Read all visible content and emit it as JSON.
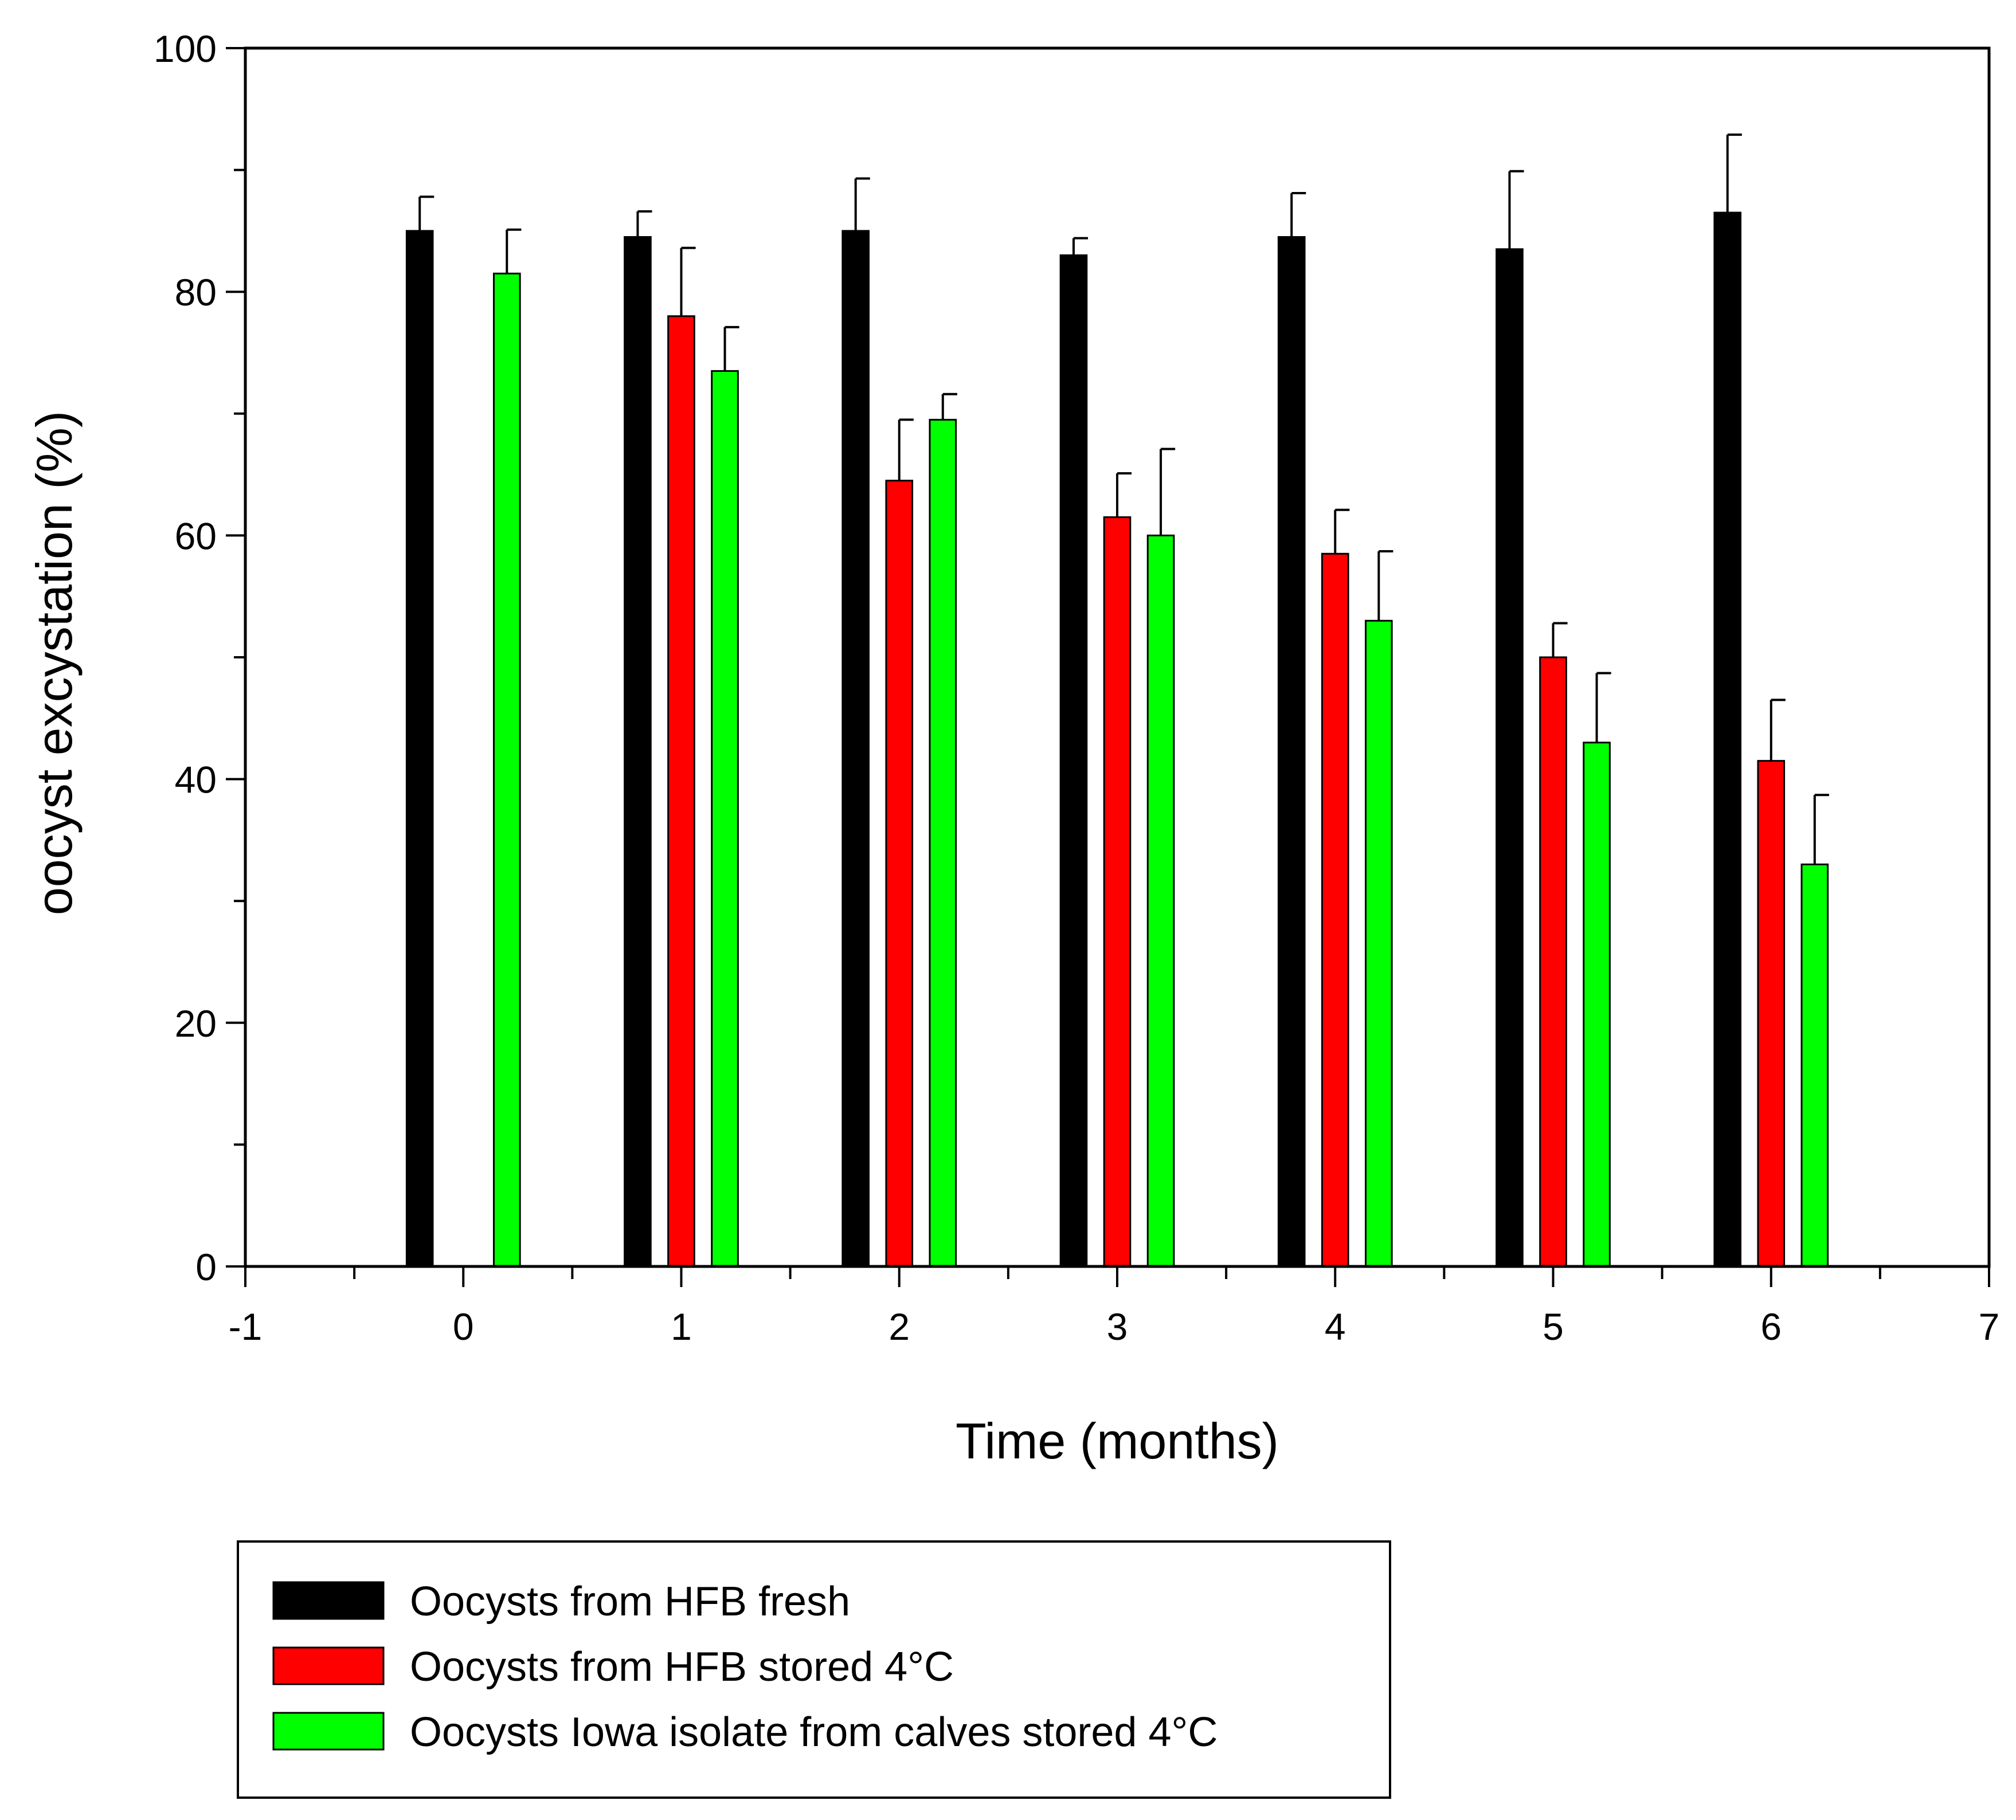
{
  "chart_data": {
    "type": "bar",
    "xlabel": "Time (months)",
    "ylabel": "oocyst excystation (%)",
    "xlim": [
      -1,
      7
    ],
    "ylim": [
      0,
      100
    ],
    "x_ticks": [
      -1,
      0,
      1,
      2,
      3,
      4,
      5,
      6,
      7
    ],
    "y_ticks": [
      0,
      20,
      40,
      60,
      80,
      100
    ],
    "grid": false,
    "legend_position": "bottom-left",
    "series": [
      {
        "name": "Oocysts from HFB fresh",
        "color": "#000000",
        "x": [
          0,
          1,
          2,
          3,
          4,
          5,
          6
        ],
        "values": [
          85,
          84.5,
          85,
          83,
          84.5,
          83.5,
          86.5
        ],
        "error": [
          2.8,
          2.1,
          4.3,
          1.4,
          3.6,
          6.4,
          6.4
        ]
      },
      {
        "name": "Oocysts from HFB stored 4°C",
        "color": "#ff0000",
        "x": [
          1,
          2,
          3,
          4,
          5,
          6
        ],
        "values": [
          78,
          64.5,
          61.5,
          58.5,
          50,
          41.5
        ],
        "error": [
          5.6,
          5.0,
          3.6,
          3.6,
          2.8,
          5.0
        ]
      },
      {
        "name": "Oocysts Iowa isolate from calves stored 4°C",
        "color": "#00ff00",
        "x": [
          0,
          1,
          2,
          3,
          4,
          5,
          6
        ],
        "values": [
          81.5,
          73.5,
          69.5,
          60,
          53,
          43,
          33
        ],
        "error": [
          3.6,
          3.6,
          2.1,
          7.1,
          5.7,
          5.7,
          5.7
        ]
      }
    ]
  }
}
